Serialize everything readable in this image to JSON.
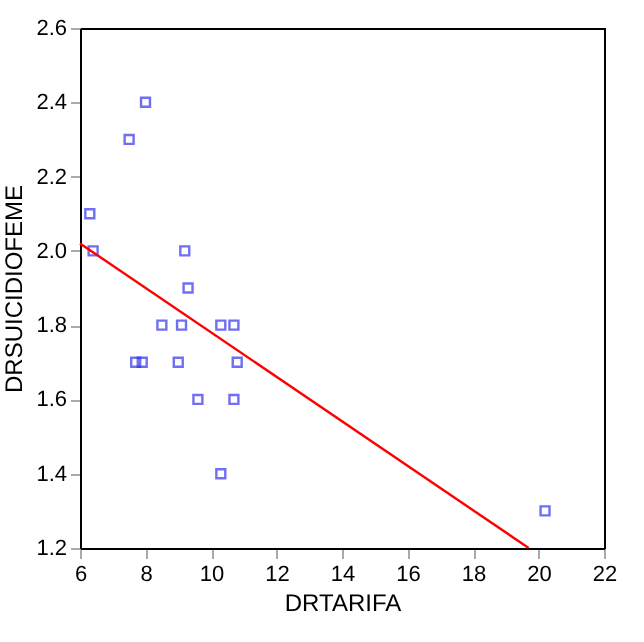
{
  "chart_data": {
    "type": "scatter",
    "xlabel": "DRTARIFA",
    "ylabel": "DRSUICIDIOFEME",
    "xlim": [
      6,
      22
    ],
    "ylim": [
      1.2,
      2.6
    ],
    "xticks": [
      6,
      8,
      10,
      12,
      14,
      16,
      18,
      20,
      22
    ],
    "yticks": [
      1.2,
      1.4,
      1.6,
      1.8,
      {
        "value": 2,
        "label": "2.0"
      },
      2.2,
      2.4,
      2.6
    ],
    "grid": false,
    "series": [
      {
        "type": "scatter",
        "marker": "square",
        "color": "#3333ee",
        "x": [
          6.3,
          6.4,
          7.5,
          8.0,
          9.2,
          9.3,
          8.5,
          9.1,
          10.3,
          10.7,
          7.7,
          7.9,
          9.0,
          10.8,
          9.6,
          10.7,
          10.3,
          20.2
        ],
        "values": [
          2.1,
          2.0,
          2.3,
          2.4,
          2.0,
          1.9,
          1.8,
          1.8,
          1.8,
          1.8,
          1.7,
          1.7,
          1.7,
          1.7,
          1.6,
          1.6,
          1.4,
          1.3
        ]
      },
      {
        "type": "line",
        "color": "#ff0000",
        "x": [
          6,
          19.7
        ],
        "values": [
          2.02,
          1.2
        ]
      }
    ]
  }
}
